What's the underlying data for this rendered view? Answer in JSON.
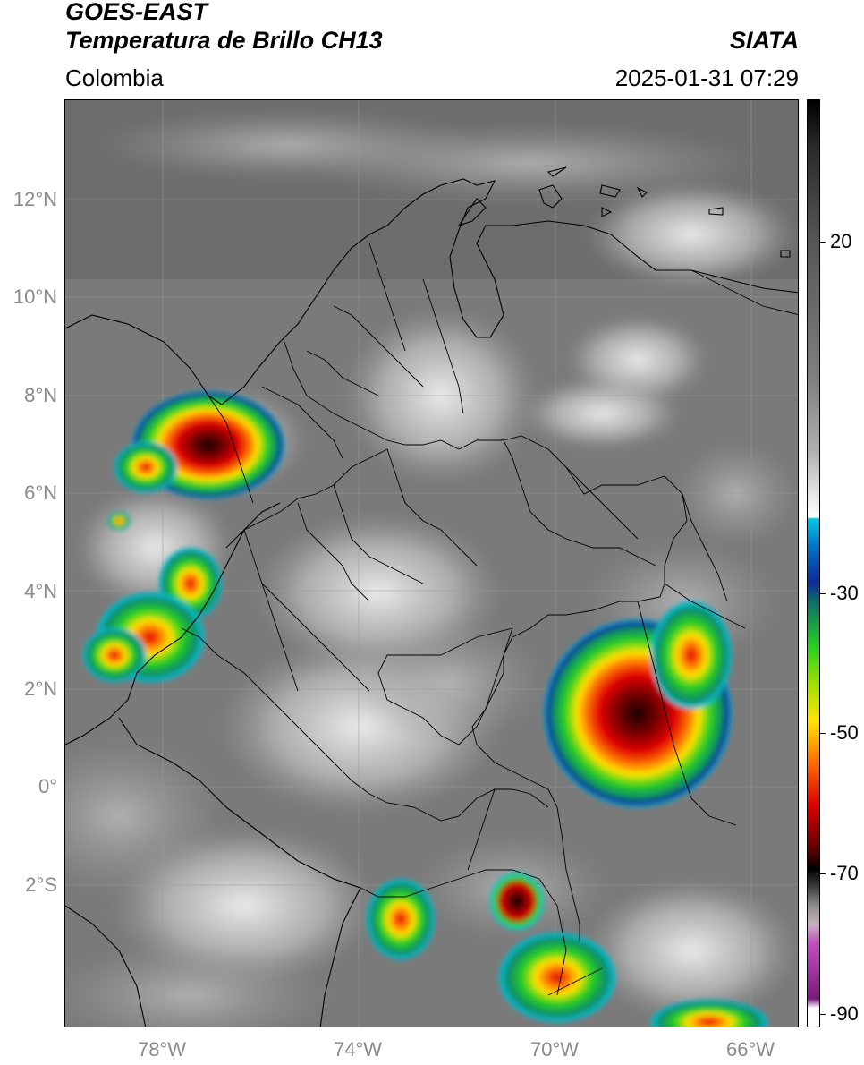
{
  "header": {
    "satellite": "GOES-EAST",
    "product": "Temperatura de Brillo CH13",
    "region": "Colombia",
    "agency": "SIATA",
    "datetime": "2025-01-31 07:29"
  },
  "map": {
    "lat_labels": [
      "12°N",
      "10°N",
      "8°N",
      "6°N",
      "4°N",
      "2°N",
      "0°",
      "2°S"
    ],
    "lon_labels": [
      "78°W",
      "74°W",
      "70°W",
      "66°W"
    ],
    "lat_range": [
      -5,
      14
    ],
    "lon_range": [
      -79.5,
      -64.5
    ],
    "gridlines": true
  },
  "colorbar": {
    "ticks": [
      "20",
      "-30",
      "-50",
      "-70",
      "-90"
    ],
    "range": [
      -93,
      38
    ],
    "colors": {
      "warm": "#ffffff",
      "cold_start": "#00c8e6",
      "blue": "#102a9a",
      "green": "#28d020",
      "yellow": "#ffe400",
      "orange": "#ff7a00",
      "red": "#e00000",
      "darkred": "#5a0000",
      "black": "#000000",
      "magenta": "#c050c0",
      "purple": "#7a1a7a"
    }
  }
}
